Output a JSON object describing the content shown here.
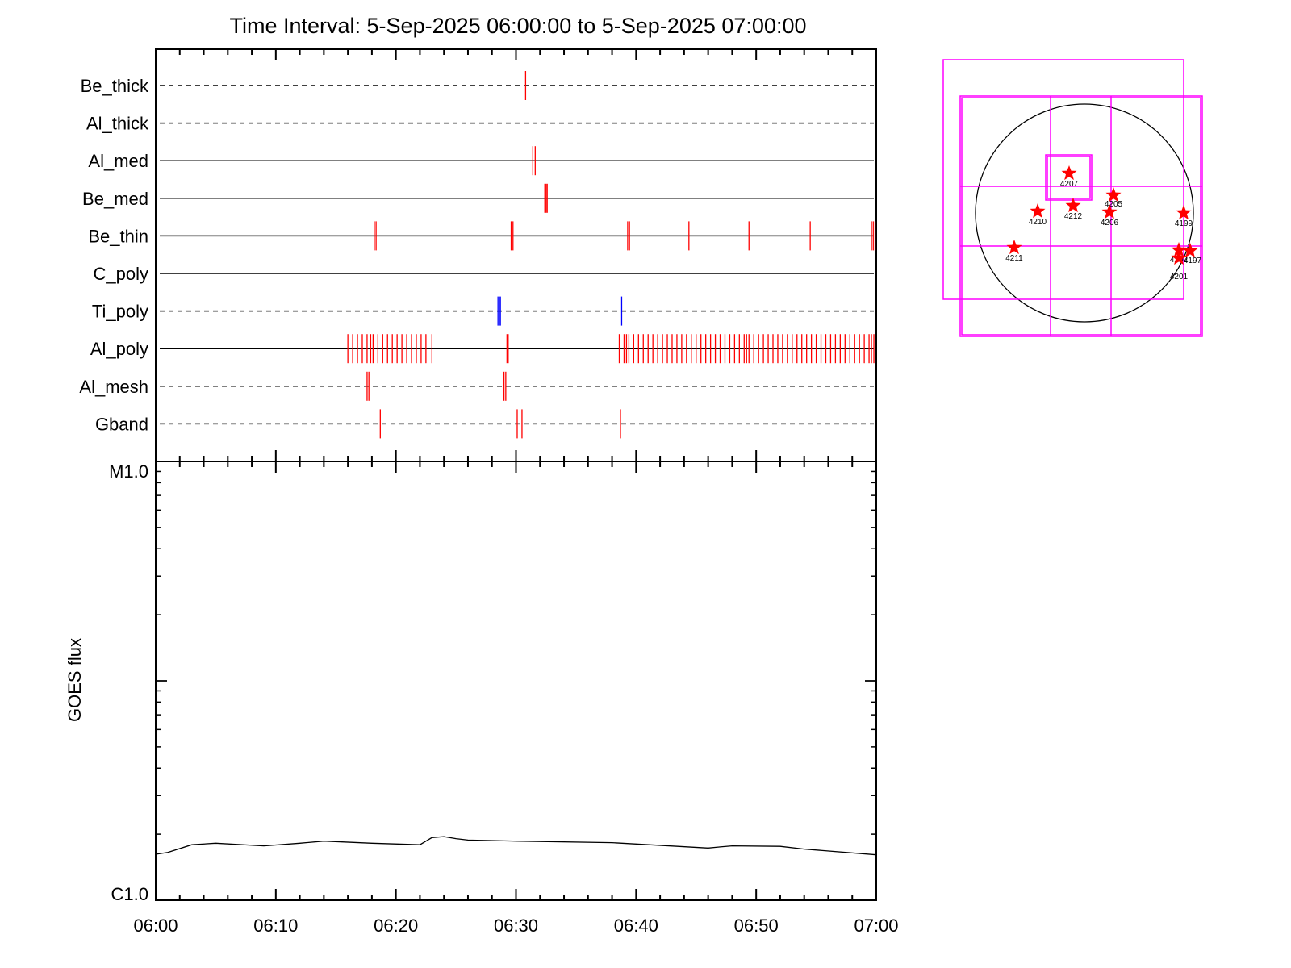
{
  "chart_data": [
    {
      "type": "timeline",
      "title": "Time Interval:  5-Sep-2025 06:00:00 to  5-Sep-2025 07:00:00",
      "x_range": [
        "06:00",
        "07:00"
      ],
      "rows": [
        {
          "label": "Be_thick",
          "style": "dashed",
          "color": "#ff0000",
          "events": [
            30.8
          ]
        },
        {
          "label": "Al_thick",
          "style": "dashed",
          "color": "#ff0000",
          "events": []
        },
        {
          "label": "Al_med",
          "style": "solid",
          "color": "#ff0000",
          "events": [
            31.4,
            31.6
          ]
        },
        {
          "label": "Be_med",
          "style": "solid",
          "color": "#ff0000",
          "events": [
            32.4,
            32.5,
            32.6
          ]
        },
        {
          "label": "Be_thin",
          "style": "solid",
          "color": "#ff0000",
          "events": [
            18.2,
            18.35,
            29.6,
            29.75,
            39.3,
            39.45,
            44.4,
            49.4,
            54.5,
            59.6,
            59.75,
            59.9
          ]
        },
        {
          "label": "C_poly",
          "style": "solid",
          "color": "#ff0000",
          "events": []
        },
        {
          "label": "Ti_poly",
          "style": "dashed",
          "color": "#0000ff",
          "events": [
            28.5,
            28.6,
            28.7,
            38.8
          ]
        },
        {
          "label": "Al_poly",
          "style": "solid",
          "color": "#ff0000",
          "events": [
            16.0,
            16.4,
            16.8,
            17.2,
            17.6,
            17.9,
            18.1,
            18.5,
            18.9,
            19.3,
            19.7,
            20.1,
            20.5,
            20.9,
            21.3,
            21.7,
            22.1,
            22.5,
            23.0,
            29.25,
            29.35,
            38.6,
            39.0,
            39.2,
            39.4,
            39.8,
            40.2,
            40.6,
            41.0,
            41.4,
            41.8,
            42.2,
            42.6,
            43.0,
            43.4,
            43.8,
            44.2,
            44.6,
            45.0,
            45.4,
            45.8,
            46.2,
            46.6,
            47.0,
            47.4,
            47.8,
            48.2,
            48.6,
            49.0,
            49.2,
            49.4,
            49.8,
            50.2,
            50.6,
            51.0,
            51.4,
            51.8,
            52.2,
            52.6,
            53.0,
            53.4,
            53.8,
            54.2,
            54.6,
            55.0,
            55.4,
            55.8,
            56.2,
            56.6,
            57.0,
            57.4,
            57.8,
            58.2,
            58.6,
            59.0,
            59.4,
            59.6,
            59.8
          ]
        },
        {
          "label": "Al_mesh",
          "style": "dashed",
          "color": "#ff0000",
          "events": [
            17.6,
            17.75,
            29.0,
            29.15
          ]
        },
        {
          "label": "Gband",
          "style": "dashed",
          "color": "#ff0000",
          "events": [
            18.7,
            30.1,
            30.5,
            38.7
          ]
        }
      ]
    },
    {
      "type": "line",
      "ylabel": "GOES flux",
      "y_scale": "log",
      "y_range": [
        "C1.0",
        "M1.0"
      ],
      "y_ticks": [
        "M1.0",
        "C1.0"
      ],
      "x_ticks": [
        "06:00",
        "06:10",
        "06:20",
        "06:30",
        "06:40",
        "06:50",
        "07:00"
      ],
      "x_minutes": [
        0,
        1,
        3,
        5,
        9,
        12,
        14,
        18,
        22,
        23,
        24,
        25,
        26,
        30,
        38,
        46,
        47,
        48,
        52,
        54,
        60
      ],
      "y_flux": [
        1.62e-06,
        1.65e-06,
        1.79e-06,
        1.82e-06,
        1.77e-06,
        1.82e-06,
        1.86e-06,
        1.82e-06,
        1.79e-06,
        1.93e-06,
        1.95e-06,
        1.91e-06,
        1.88e-06,
        1.86e-06,
        1.83e-06,
        1.73e-06,
        1.75e-06,
        1.77e-06,
        1.76e-06,
        1.71e-06,
        1.61e-06
      ]
    }
  ],
  "context_map": {
    "disk_color": "#000000",
    "box_color": "#ff00ff",
    "star_color": "#ff0000",
    "regions": [
      {
        "id": "4207"
      },
      {
        "id": "4205"
      },
      {
        "id": "4212"
      },
      {
        "id": "4206"
      },
      {
        "id": "4210"
      },
      {
        "id": "4199"
      },
      {
        "id": "4211"
      },
      {
        "id": "4202"
      },
      {
        "id": "4197"
      },
      {
        "id": "4201"
      }
    ]
  }
}
